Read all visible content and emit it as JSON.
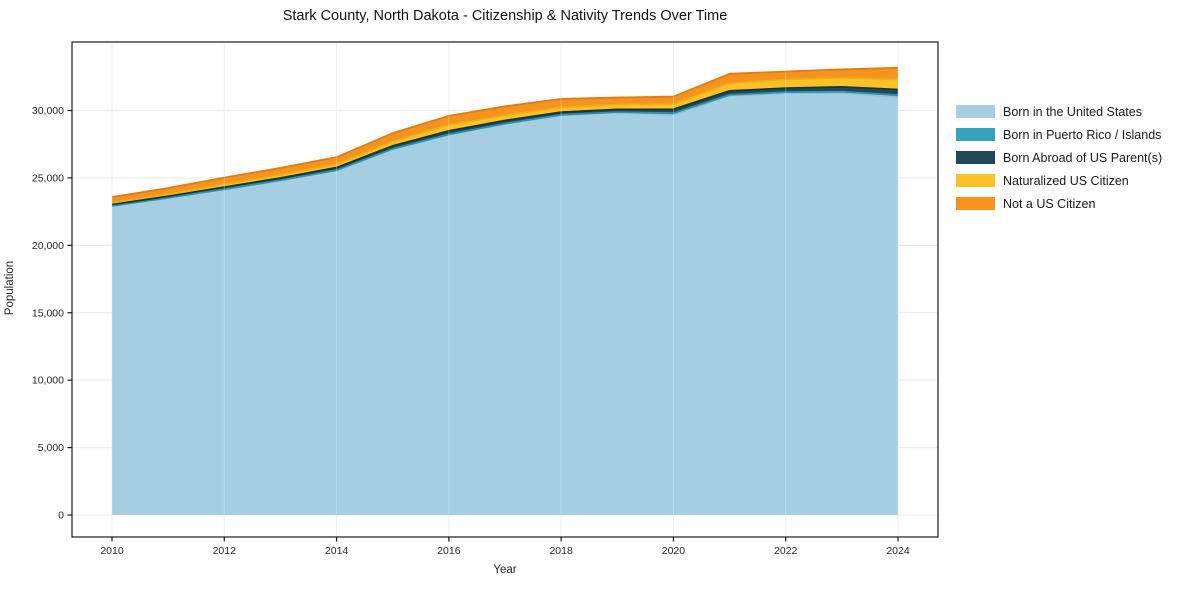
{
  "chart_data": {
    "type": "area",
    "stacked": true,
    "title": "Stark County, North Dakota - Citizenship & Nativity Trends Over Time",
    "xlabel": "Year",
    "ylabel": "Population",
    "grid": true,
    "legend_position": "right",
    "grid_color": "#e9e9e9",
    "frame_color": "#1a1a1a",
    "x": [
      2010,
      2011,
      2012,
      2013,
      2014,
      2015,
      2016,
      2017,
      2018,
      2019,
      2020,
      2021,
      2022,
      2023,
      2024
    ],
    "series": [
      {
        "name": "Born in the United States",
        "slug": "born-in-the-united-states",
        "color": "#a6cee3",
        "edge": "#8ec1dc",
        "values": [
          22900,
          23500,
          24140,
          24800,
          25550,
          27130,
          28200,
          29000,
          29650,
          29850,
          29680,
          31100,
          31280,
          31300,
          30990
        ]
      },
      {
        "name": "Born in Puerto Rico / Islands",
        "slug": "born-in-puerto-rico-islands",
        "color": "#36a0bf",
        "edge": "#2e8fae",
        "values": [
          30,
          30,
          25,
          25,
          25,
          25,
          30,
          30,
          30,
          30,
          120,
          60,
          80,
          100,
          150
        ]
      },
      {
        "name": "Born Abroad of US Parent(s)",
        "slug": "born-abroad-of-us-parents",
        "color": "#1f4a57",
        "edge": "#16363f",
        "values": [
          100,
          110,
          150,
          170,
          195,
          220,
          260,
          230,
          200,
          200,
          295,
          295,
          300,
          350,
          415
        ]
      },
      {
        "name": "Naturalized US Citizen",
        "slug": "naturalized-us-citizen",
        "color": "#fdc128",
        "edge": "#ecae19",
        "values": [
          120,
          160,
          220,
          235,
          250,
          320,
          445,
          400,
          345,
          380,
          370,
          575,
          640,
          680,
          745
        ]
      },
      {
        "name": "Not a US Citizen",
        "slug": "not-a-us-citizen",
        "color": "#f6921e",
        "edge": "#e07c10",
        "values": [
          430,
          450,
          490,
          510,
          520,
          625,
          670,
          650,
          640,
          500,
          570,
          690,
          590,
          620,
          865
        ]
      }
    ],
    "xlim": [
      2009.2875,
      2024.7125
    ],
    "ylim": [
      -1630,
      35080
    ],
    "xticks": [
      {
        "v": 2010,
        "label": "2010"
      },
      {
        "v": 2012,
        "label": "2012"
      },
      {
        "v": 2014,
        "label": "2014"
      },
      {
        "v": 2016,
        "label": "2016"
      },
      {
        "v": 2018,
        "label": "2018"
      },
      {
        "v": 2020,
        "label": "2020"
      },
      {
        "v": 2022,
        "label": "2022"
      },
      {
        "v": 2024,
        "label": "2024"
      }
    ],
    "yticks": [
      {
        "v": 0,
        "label": "0"
      },
      {
        "v": 5000,
        "label": "5,000"
      },
      {
        "v": 10000,
        "label": "10,000"
      },
      {
        "v": 15000,
        "label": "15,000"
      },
      {
        "v": 20000,
        "label": "20,000"
      },
      {
        "v": 25000,
        "label": "25,000"
      },
      {
        "v": 30000,
        "label": "30,000"
      }
    ]
  }
}
